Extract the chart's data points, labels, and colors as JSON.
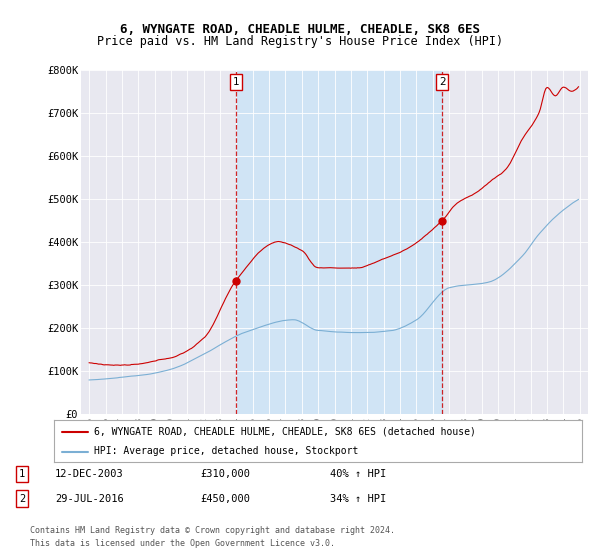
{
  "title": "6, WYNGATE ROAD, CHEADLE HULME, CHEADLE, SK8 6ES",
  "subtitle": "Price paid vs. HM Land Registry's House Price Index (HPI)",
  "ylim": [
    0,
    800000
  ],
  "yticks": [
    0,
    100000,
    200000,
    300000,
    400000,
    500000,
    600000,
    700000,
    800000
  ],
  "ytick_labels": [
    "£0",
    "£100K",
    "£200K",
    "£300K",
    "£400K",
    "£500K",
    "£600K",
    "£700K",
    "£800K"
  ],
  "background_color": "#ffffff",
  "plot_bg_color": "#e8e8f0",
  "plot_bg_color2": "#dce8f5",
  "grid_color": "#ffffff",
  "sale1_year": 2003.96,
  "sale1_value": 310000,
  "sale2_year": 2016.58,
  "sale2_value": 450000,
  "legend_entry1": "6, WYNGATE ROAD, CHEADLE HULME, CHEADLE, SK8 6ES (detached house)",
  "legend_entry2": "HPI: Average price, detached house, Stockport",
  "footer1": "Contains HM Land Registry data © Crown copyright and database right 2024.",
  "footer2": "This data is licensed under the Open Government Licence v3.0.",
  "red_color": "#cc0000",
  "blue_color": "#7bafd4",
  "shade_color": "#d0e4f5",
  "title_fontsize": 9,
  "subtitle_fontsize": 8.5
}
